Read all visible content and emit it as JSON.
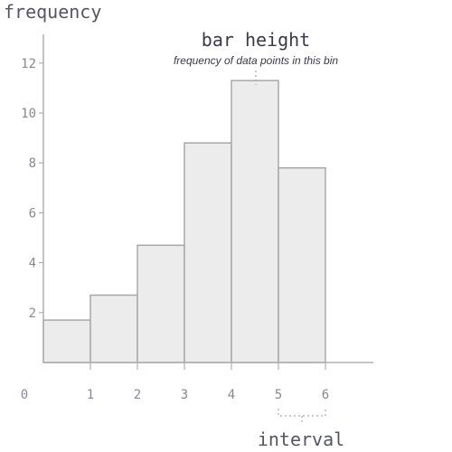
{
  "chart_data": {
    "type": "bar",
    "title": "",
    "ylabel": "frequency",
    "xlabel": "interval",
    "x_ticks": [
      "0",
      "1",
      "2",
      "3",
      "4",
      "5",
      "6"
    ],
    "y_ticks": [
      "2",
      "4",
      "6",
      "8",
      "10",
      "12"
    ],
    "xlim": [
      0,
      7
    ],
    "ylim": [
      0,
      13
    ],
    "bins": [
      {
        "start": 0,
        "end": 1,
        "value": 1.7
      },
      {
        "start": 1,
        "end": 2,
        "value": 2.7
      },
      {
        "start": 2,
        "end": 3,
        "value": 4.7
      },
      {
        "start": 3,
        "end": 4,
        "value": 8.8
      },
      {
        "start": 4,
        "end": 5,
        "value": 11.3
      },
      {
        "start": 5,
        "end": 6,
        "value": 7.8
      }
    ],
    "annotations": {
      "bar_height_title": "bar height",
      "bar_height_subtitle": "frequency of data points in this bin",
      "interval_label": "interval"
    },
    "colors": {
      "bar_fill": "#ececec",
      "bar_stroke": "#a8a8a8",
      "axis": "#b0b0b0",
      "text": "#555566",
      "annotation_text": "#3a3a4a"
    },
    "grid": false
  }
}
